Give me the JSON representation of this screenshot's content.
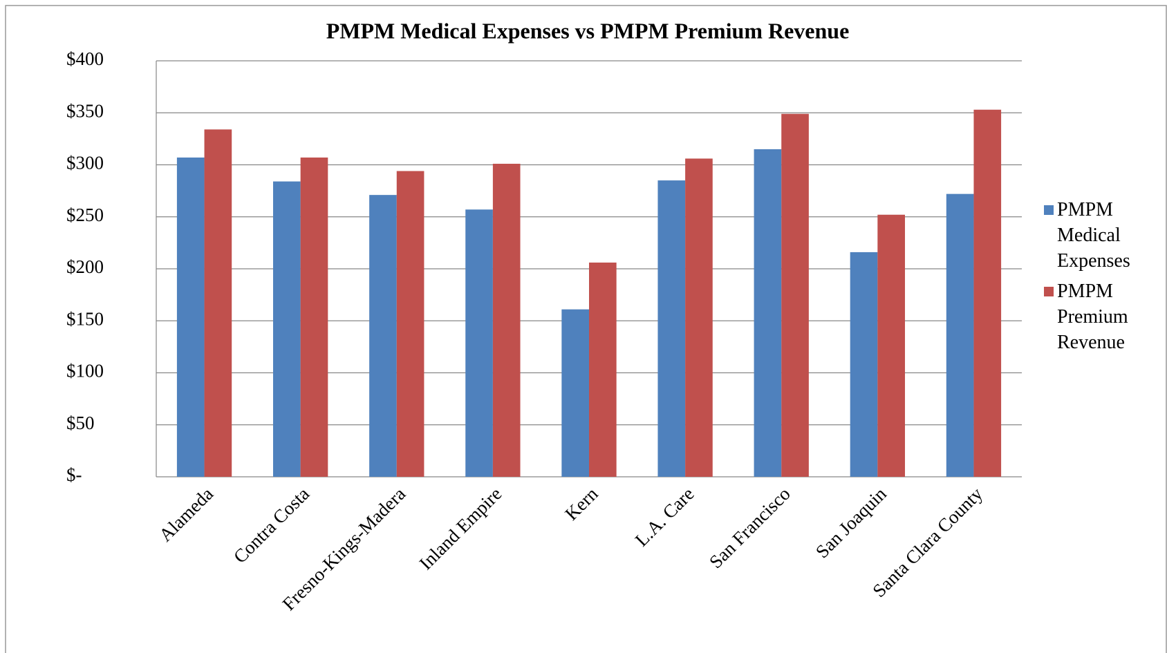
{
  "chart_data": {
    "type": "bar",
    "title": "PMPM Medical Expenses vs PMPM Premium Revenue",
    "categories": [
      "Alameda",
      "Contra Costa",
      "Fresno-Kings-Madera",
      "Inland Empire",
      "Kern",
      "L.A. Care",
      "San Francisco",
      "San Joaquin",
      "Santa Clara County"
    ],
    "series": [
      {
        "name": "PMPM Medical Expenses",
        "color": "#4f81bd",
        "values": [
          307,
          284,
          271,
          257,
          161,
          285,
          315,
          216,
          272
        ]
      },
      {
        "name": "PMPM Premium Revenue",
        "color": "#c0504d",
        "values": [
          334,
          307,
          294,
          301,
          206,
          306,
          349,
          252,
          353
        ]
      }
    ],
    "ylim": [
      0,
      400
    ],
    "yticks": [
      {
        "value": 0,
        "label": "$-"
      },
      {
        "value": 50,
        "label": "$50"
      },
      {
        "value": 100,
        "label": "$100"
      },
      {
        "value": 150,
        "label": "$150"
      },
      {
        "value": 200,
        "label": "$200"
      },
      {
        "value": 250,
        "label": "$250"
      },
      {
        "value": 300,
        "label": "$300"
      },
      {
        "value": 350,
        "label": "$350"
      },
      {
        "value": 400,
        "label": "$400"
      }
    ],
    "grid": true,
    "legend": "right"
  }
}
